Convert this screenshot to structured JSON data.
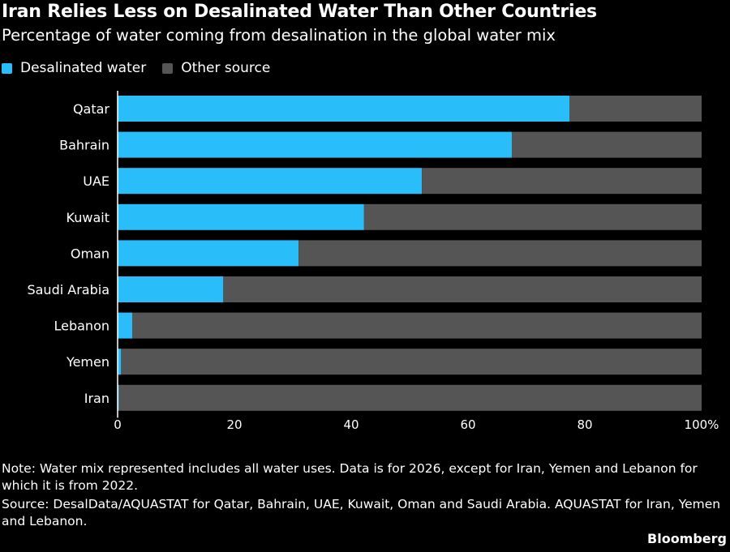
{
  "title": "Iran Relies Less on Desalinated Water Than Other Countries",
  "subtitle": "Percentage of water coming from desalination in the global water mix",
  "note": "Note: Water mix represented includes all water uses. Data is for 2026, except for Iran, Yemen and Lebanon for which it is from 2022.",
  "source": "Source:  DesalData/AQUASTAT for Qatar, Bahrain, UAE, Kuwait, Oman and Saudi Arabia. AQUASTAT for Iran, Yemen and Lebanon.",
  "logo": "Bloomberg",
  "chart_data": {
    "type": "bar",
    "orientation": "horizontal",
    "stacked": true,
    "categories": [
      "Qatar",
      "Bahrain",
      "UAE",
      "Kuwait",
      "Oman",
      "Saudi Arabia",
      "Lebanon",
      "Yemen",
      "Iran"
    ],
    "series": [
      {
        "name": "Desalinated water",
        "color": "#29bdfa",
        "values": [
          77.4,
          67.5,
          52.1,
          42.2,
          31.0,
          18.1,
          2.5,
          0.6,
          0.2
        ]
      },
      {
        "name": "Other source",
        "color": "#555555",
        "values": [
          22.6,
          32.5,
          47.9,
          57.8,
          69.0,
          81.9,
          97.5,
          99.4,
          99.8
        ]
      }
    ],
    "xlim": [
      0,
      100
    ],
    "xticks": [
      "0",
      "20",
      "40",
      "60",
      "80",
      "100%"
    ],
    "legend": "top-left",
    "grid": false
  }
}
